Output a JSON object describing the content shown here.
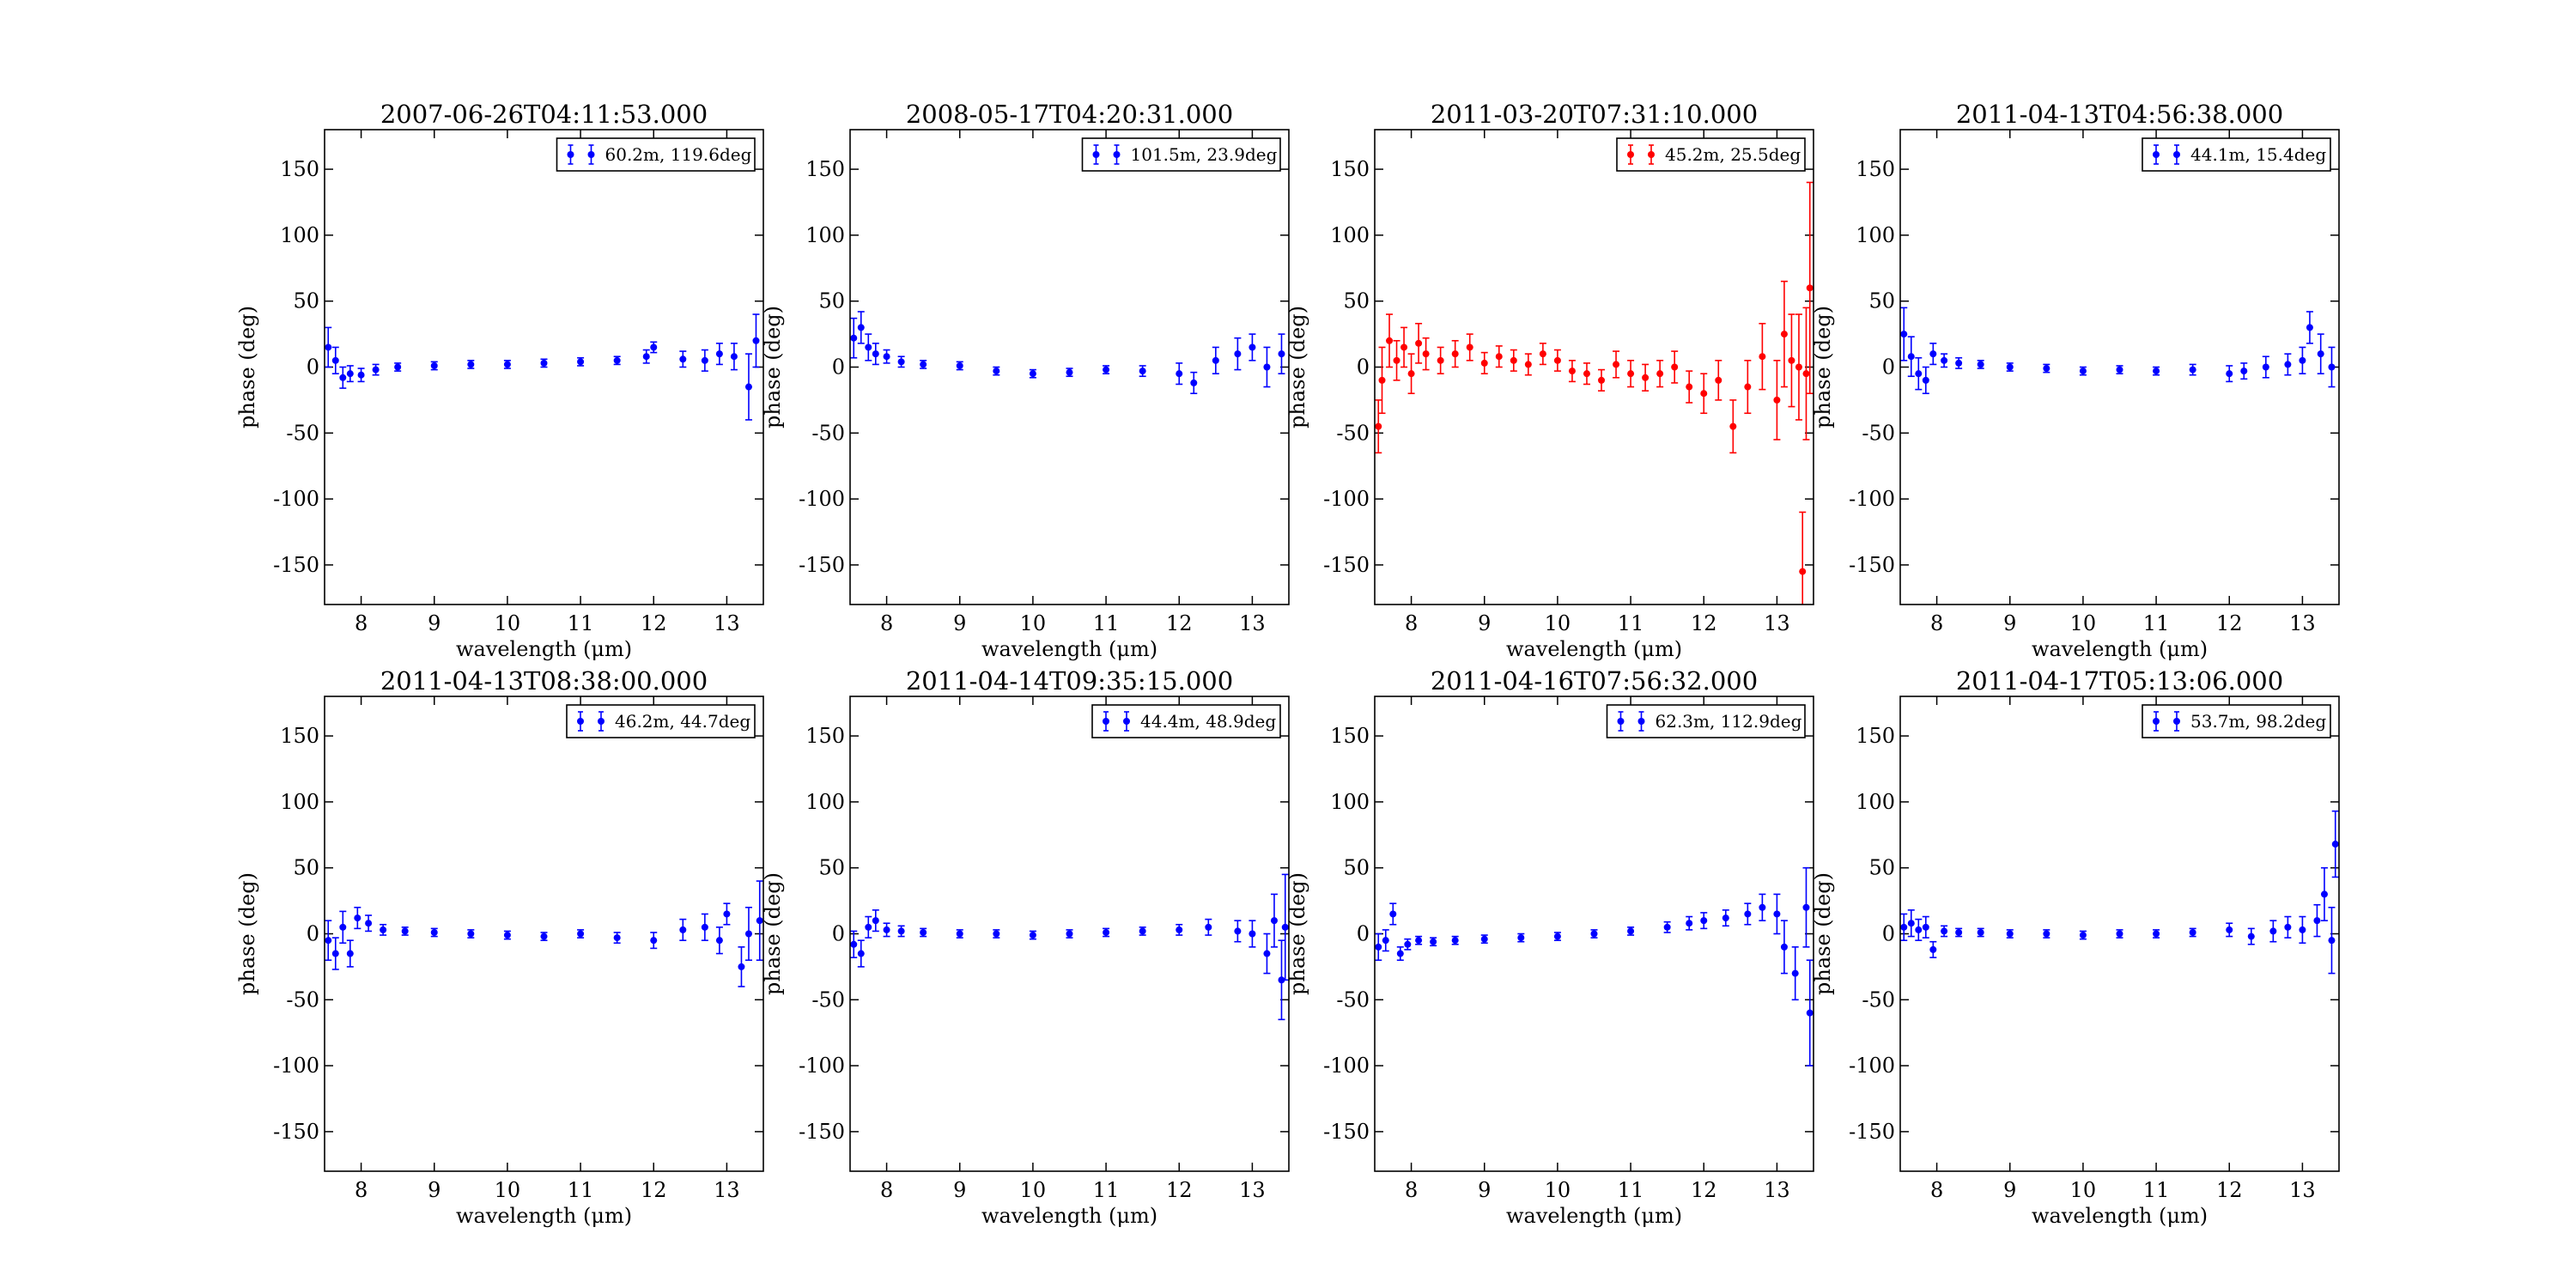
{
  "chart_data": [
    {
      "type": "scatter",
      "title": "2007-06-26T04:11:53.000",
      "xlabel": "wavelength (μm)",
      "ylabel": "phase (deg)",
      "xlim": [
        7.5,
        13.5
      ],
      "ylim": [
        -180,
        180
      ],
      "xticks": [
        "8",
        "9",
        "10",
        "11",
        "12",
        "13"
      ],
      "yticks": [
        "150",
        "100",
        "50",
        "0",
        "-50",
        "-100",
        "-150"
      ],
      "legend": "upper-right",
      "grid": false,
      "series": [
        {
          "name": "60.2m, 119.6deg",
          "color": "#0000ff",
          "x": [
            7.55,
            7.65,
            7.75,
            7.85,
            8.0,
            8.2,
            8.5,
            9.0,
            9.5,
            10.0,
            10.5,
            11.0,
            11.5,
            11.9,
            12.0,
            12.4,
            12.7,
            12.9,
            13.1,
            13.3,
            13.4
          ],
          "y": [
            15,
            5,
            -8,
            -5,
            -6,
            -2,
            0,
            1,
            2,
            2,
            3,
            4,
            5,
            8,
            15,
            6,
            5,
            10,
            8,
            -15,
            20
          ],
          "err": [
            15,
            10,
            8,
            6,
            5,
            4,
            3,
            3,
            3,
            3,
            3,
            3,
            3,
            5,
            4,
            6,
            8,
            8,
            10,
            25,
            20
          ]
        }
      ]
    },
    {
      "type": "scatter",
      "title": "2008-05-17T04:20:31.000",
      "xlabel": "wavelength (μm)",
      "ylabel": "phase (deg)",
      "xlim": [
        7.5,
        13.5
      ],
      "ylim": [
        -180,
        180
      ],
      "xticks": [
        "8",
        "9",
        "10",
        "11",
        "12",
        "13"
      ],
      "yticks": [
        "150",
        "100",
        "50",
        "0",
        "-50",
        "-100",
        "-150"
      ],
      "legend": "upper-right",
      "grid": false,
      "series": [
        {
          "name": "101.5m, 23.9deg",
          "color": "#0000ff",
          "x": [
            7.55,
            7.65,
            7.75,
            7.85,
            8.0,
            8.2,
            8.5,
            9.0,
            9.5,
            10.0,
            10.5,
            11.0,
            11.5,
            12.0,
            12.2,
            12.5,
            12.8,
            13.0,
            13.2,
            13.4
          ],
          "y": [
            22,
            30,
            15,
            10,
            8,
            4,
            2,
            1,
            -3,
            -5,
            -4,
            -2,
            -3,
            -5,
            -12,
            5,
            10,
            15,
            0,
            10
          ],
          "err": [
            15,
            12,
            10,
            8,
            5,
            4,
            3,
            3,
            3,
            3,
            3,
            3,
            4,
            8,
            8,
            10,
            12,
            10,
            15,
            15
          ]
        }
      ]
    },
    {
      "type": "scatter",
      "title": "2011-03-20T07:31:10.000",
      "xlabel": "wavelength (μm)",
      "ylabel": "phase (deg)",
      "xlim": [
        7.5,
        13.5
      ],
      "ylim": [
        -180,
        180
      ],
      "xticks": [
        "8",
        "9",
        "10",
        "11",
        "12",
        "13"
      ],
      "yticks": [
        "150",
        "100",
        "50",
        "0",
        "-50",
        "-100",
        "-150"
      ],
      "legend": "upper-right",
      "grid": false,
      "series": [
        {
          "name": "45.2m, 25.5deg",
          "color": "#ff0000",
          "x": [
            7.55,
            7.6,
            7.7,
            7.8,
            7.9,
            8.0,
            8.1,
            8.2,
            8.4,
            8.6,
            8.8,
            9.0,
            9.2,
            9.4,
            9.6,
            9.8,
            10.0,
            10.2,
            10.4,
            10.6,
            10.8,
            11.0,
            11.2,
            11.4,
            11.6,
            11.8,
            12.0,
            12.2,
            12.4,
            12.6,
            12.8,
            13.0,
            13.1,
            13.2,
            13.3,
            13.35,
            13.4,
            13.45
          ],
          "y": [
            -45,
            -10,
            20,
            5,
            15,
            -5,
            18,
            10,
            5,
            10,
            15,
            3,
            8,
            5,
            2,
            10,
            5,
            -3,
            -5,
            -10,
            2,
            -5,
            -8,
            -5,
            0,
            -15,
            -20,
            -10,
            -45,
            -15,
            8,
            -25,
            25,
            5,
            0,
            -155,
            -5,
            60
          ],
          "err": [
            20,
            25,
            20,
            15,
            15,
            15,
            15,
            12,
            10,
            10,
            10,
            8,
            8,
            8,
            8,
            8,
            8,
            8,
            8,
            8,
            10,
            10,
            10,
            10,
            12,
            12,
            15,
            15,
            20,
            20,
            25,
            30,
            40,
            35,
            40,
            45,
            50,
            80
          ]
        }
      ]
    },
    {
      "type": "scatter",
      "title": "2011-04-13T04:56:38.000",
      "xlabel": "wavelength (μm)",
      "ylabel": "phase (deg)",
      "xlim": [
        7.5,
        13.5
      ],
      "ylim": [
        -180,
        180
      ],
      "xticks": [
        "8",
        "9",
        "10",
        "11",
        "12",
        "13"
      ],
      "yticks": [
        "150",
        "100",
        "50",
        "0",
        "-50",
        "-100",
        "-150"
      ],
      "legend": "upper-right",
      "grid": false,
      "series": [
        {
          "name": "44.1m, 15.4deg",
          "color": "#0000ff",
          "x": [
            7.55,
            7.65,
            7.75,
            7.85,
            7.95,
            8.1,
            8.3,
            8.6,
            9.0,
            9.5,
            10.0,
            10.5,
            11.0,
            11.5,
            12.0,
            12.2,
            12.5,
            12.8,
            13.0,
            13.1,
            13.25,
            13.4
          ],
          "y": [
            25,
            8,
            -5,
            -10,
            10,
            5,
            3,
            2,
            0,
            -1,
            -3,
            -2,
            -3,
            -2,
            -5,
            -3,
            0,
            2,
            5,
            30,
            10,
            0
          ],
          "err": [
            20,
            15,
            12,
            10,
            8,
            5,
            4,
            3,
            3,
            3,
            3,
            3,
            3,
            4,
            6,
            6,
            8,
            8,
            10,
            12,
            15,
            15
          ]
        }
      ]
    },
    {
      "type": "scatter",
      "title": "2011-04-13T08:38:00.000",
      "xlabel": "wavelength (μm)",
      "ylabel": "phase (deg)",
      "xlim": [
        7.5,
        13.5
      ],
      "ylim": [
        -180,
        180
      ],
      "xticks": [
        "8",
        "9",
        "10",
        "11",
        "12",
        "13"
      ],
      "yticks": [
        "150",
        "100",
        "50",
        "0",
        "-50",
        "-100",
        "-150"
      ],
      "legend": "upper-right",
      "grid": false,
      "series": [
        {
          "name": "46.2m, 44.7deg",
          "color": "#0000ff",
          "x": [
            7.55,
            7.65,
            7.75,
            7.85,
            7.95,
            8.1,
            8.3,
            8.6,
            9.0,
            9.5,
            10.0,
            10.5,
            11.0,
            11.5,
            12.0,
            12.4,
            12.7,
            12.9,
            13.0,
            13.2,
            13.3,
            13.45
          ],
          "y": [
            -5,
            -15,
            5,
            -15,
            12,
            8,
            3,
            2,
            1,
            0,
            -1,
            -2,
            0,
            -3,
            -5,
            3,
            5,
            -5,
            15,
            -25,
            0,
            10
          ],
          "err": [
            15,
            12,
            12,
            10,
            8,
            6,
            4,
            3,
            3,
            3,
            3,
            3,
            3,
            4,
            6,
            8,
            10,
            10,
            8,
            15,
            20,
            30
          ]
        }
      ]
    },
    {
      "type": "scatter",
      "title": "2011-04-14T09:35:15.000",
      "xlabel": "wavelength (μm)",
      "ylabel": "phase (deg)",
      "xlim": [
        7.5,
        13.5
      ],
      "ylim": [
        -180,
        180
      ],
      "xticks": [
        "8",
        "9",
        "10",
        "11",
        "12",
        "13"
      ],
      "yticks": [
        "150",
        "100",
        "50",
        "0",
        "-50",
        "-100",
        "-150"
      ],
      "legend": "upper-right",
      "grid": false,
      "series": [
        {
          "name": "44.4m, 48.9deg",
          "color": "#0000ff",
          "x": [
            7.55,
            7.65,
            7.75,
            7.85,
            8.0,
            8.2,
            8.5,
            9.0,
            9.5,
            10.0,
            10.5,
            11.0,
            11.5,
            12.0,
            12.4,
            12.8,
            13.0,
            13.2,
            13.3,
            13.4,
            13.45
          ],
          "y": [
            -8,
            -15,
            5,
            10,
            3,
            2,
            1,
            0,
            0,
            -1,
            0,
            1,
            2,
            3,
            5,
            2,
            0,
            -15,
            10,
            -35,
            5
          ],
          "err": [
            10,
            10,
            8,
            8,
            5,
            4,
            3,
            3,
            3,
            3,
            3,
            3,
            3,
            4,
            6,
            8,
            10,
            15,
            20,
            30,
            40
          ]
        }
      ]
    },
    {
      "type": "scatter",
      "title": "2011-04-16T07:56:32.000",
      "xlabel": "wavelength (μm)",
      "ylabel": "phase (deg)",
      "xlim": [
        7.5,
        13.5
      ],
      "ylim": [
        -180,
        180
      ],
      "xticks": [
        "8",
        "9",
        "10",
        "11",
        "12",
        "13"
      ],
      "yticks": [
        "150",
        "100",
        "50",
        "0",
        "-50",
        "-100",
        "-150"
      ],
      "legend": "upper-right",
      "grid": false,
      "series": [
        {
          "name": "62.3m, 112.9deg",
          "color": "#0000ff",
          "x": [
            7.55,
            7.65,
            7.75,
            7.85,
            7.95,
            8.1,
            8.3,
            8.6,
            9.0,
            9.5,
            10.0,
            10.5,
            11.0,
            11.5,
            11.8,
            12.0,
            12.3,
            12.6,
            12.8,
            13.0,
            13.1,
            13.25,
            13.4,
            13.45
          ],
          "y": [
            -10,
            -5,
            15,
            -15,
            -8,
            -5,
            -6,
            -5,
            -4,
            -3,
            -2,
            0,
            2,
            5,
            8,
            10,
            12,
            15,
            20,
            15,
            -10,
            -30,
            20,
            -60
          ],
          "err": [
            10,
            8,
            8,
            5,
            4,
            3,
            3,
            3,
            3,
            3,
            3,
            3,
            3,
            4,
            5,
            6,
            6,
            8,
            10,
            15,
            20,
            20,
            30,
            40
          ]
        }
      ]
    },
    {
      "type": "scatter",
      "title": "2011-04-17T05:13:06.000",
      "xlabel": "wavelength (μm)",
      "ylabel": "phase (deg)",
      "xlim": [
        7.5,
        13.5
      ],
      "ylim": [
        -180,
        180
      ],
      "xticks": [
        "8",
        "9",
        "10",
        "11",
        "12",
        "13"
      ],
      "yticks": [
        "150",
        "100",
        "50",
        "0",
        "-50",
        "-100",
        "-150"
      ],
      "legend": "upper-right",
      "grid": false,
      "series": [
        {
          "name": "53.7m, 98.2deg",
          "color": "#0000ff",
          "x": [
            7.55,
            7.65,
            7.75,
            7.85,
            7.95,
            8.1,
            8.3,
            8.6,
            9.0,
            9.5,
            10.0,
            10.5,
            11.0,
            11.5,
            12.0,
            12.3,
            12.6,
            12.8,
            13.0,
            13.2,
            13.3,
            13.4,
            13.45
          ],
          "y": [
            5,
            8,
            3,
            5,
            -12,
            2,
            1,
            1,
            0,
            0,
            -1,
            0,
            0,
            1,
            3,
            -2,
            2,
            5,
            3,
            10,
            30,
            -5,
            68
          ],
          "err": [
            10,
            10,
            8,
            8,
            6,
            4,
            3,
            3,
            3,
            3,
            3,
            3,
            3,
            3,
            5,
            6,
            8,
            8,
            10,
            12,
            20,
            25,
            25
          ]
        }
      ]
    }
  ]
}
